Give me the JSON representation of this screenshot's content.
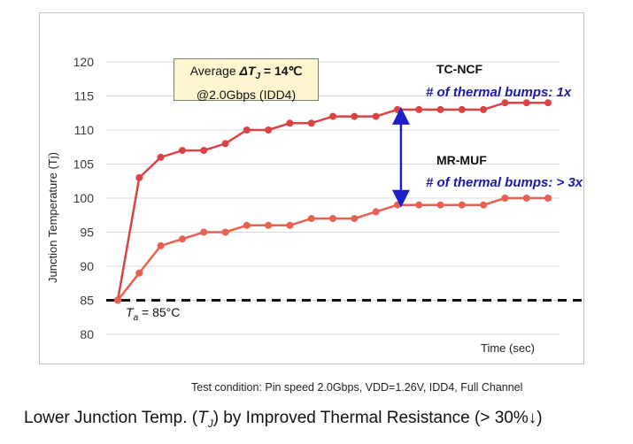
{
  "chart_data": {
    "type": "line",
    "ylabel": "Junction Temperature (Tj)",
    "xlabel": "Time (sec)",
    "ylim": [
      80,
      120
    ],
    "yticks": [
      80,
      85,
      90,
      95,
      100,
      105,
      110,
      115,
      120
    ],
    "x": [
      0,
      1,
      2,
      3,
      4,
      5,
      6,
      7,
      8,
      9,
      10,
      11,
      12,
      13,
      14,
      15,
      16,
      17,
      18,
      19,
      20
    ],
    "series": [
      {
        "name": "TC-NCF",
        "color": "#d94343",
        "values": [
          85,
          103,
          106,
          107,
          107,
          108,
          110,
          110,
          111,
          111,
          112,
          112,
          112,
          113,
          113,
          113,
          113,
          113,
          114,
          114,
          114
        ]
      },
      {
        "name": "MR-MUF",
        "color": "#e8604f",
        "values": [
          85,
          89,
          93,
          94,
          95,
          95,
          96,
          96,
          96,
          97,
          97,
          97,
          98,
          99,
          99,
          99,
          99,
          99,
          100,
          100,
          100
        ]
      }
    ],
    "ambient": {
      "value": 85,
      "label_prefix": "T",
      "label_sub": "a",
      "label_suffix": " = 85°C"
    },
    "annotations": {
      "tc_ncf_bumps": "# of thermal bumps: 1x",
      "mr_muf_bumps": "# of thermal bumps: > 3x"
    },
    "arrow": {
      "x_index": 13,
      "from": 113,
      "to": 99
    }
  },
  "avg_box": {
    "line1_prefix": "Average ",
    "delta": "ΔT",
    "sub": "J",
    "line1_suffix": " = 14℃",
    "line2": "@2.0Gbps (IDD4)"
  },
  "test_condition": "Test condition: Pin speed 2.0Gbps, VDD=1.26V, IDD4, Full Channel",
  "caption": {
    "prefix": "Lower Junction Temp. (",
    "t": "T",
    "sub": "J",
    "suffix": ") by Improved Thermal Resistance (> 30%↓)"
  }
}
